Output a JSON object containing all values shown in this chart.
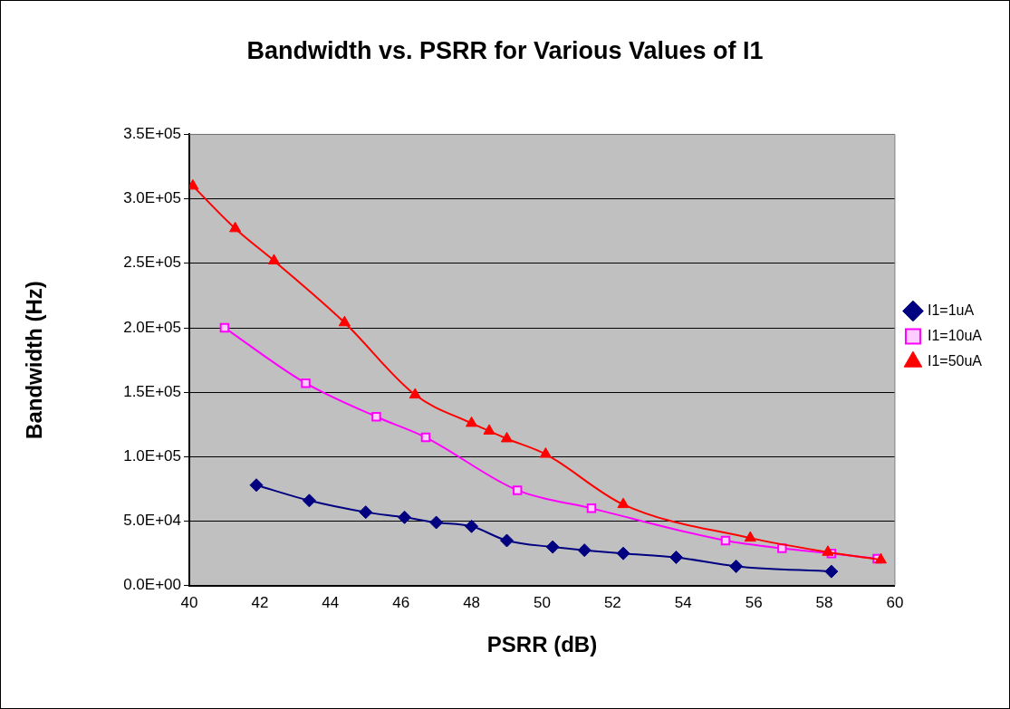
{
  "chart_data": {
    "type": "line",
    "title": "Bandwidth vs. PSRR for Various Values of I1",
    "xlabel": "PSRR (dB)",
    "ylabel": "Bandwidth (Hz)",
    "xlim": [
      40,
      60
    ],
    "xticks": [
      40,
      42,
      44,
      46,
      48,
      50,
      52,
      54,
      56,
      58,
      60
    ],
    "ylim": [
      0,
      350000
    ],
    "yticks": [
      {
        "value": 0,
        "label": "0.0E+00"
      },
      {
        "value": 50000,
        "label": "5.0E+04"
      },
      {
        "value": 100000,
        "label": "1.0E+05"
      },
      {
        "value": 150000,
        "label": "1.5E+05"
      },
      {
        "value": 200000,
        "label": "2.0E+05"
      },
      {
        "value": 250000,
        "label": "2.5E+05"
      },
      {
        "value": 300000,
        "label": "3.0E+05"
      },
      {
        "value": 350000,
        "label": "3.5E+05"
      }
    ],
    "grid": "y",
    "legend": "right",
    "series": [
      {
        "name": "I1=1uA",
        "color": "#000080",
        "marker": "diamond",
        "x": [
          41.9,
          43.4,
          45,
          46.1,
          47,
          48,
          49,
          50.3,
          51.2,
          52.3,
          53.8,
          55.5,
          58.2
        ],
        "values": [
          78000,
          66000,
          57000,
          53000,
          49000,
          46000,
          35000,
          30000,
          27500,
          25000,
          22000,
          15000,
          11000
        ]
      },
      {
        "name": "I1=10uA",
        "color": "#ff00ff",
        "marker": "square",
        "x": [
          41,
          43.3,
          45.3,
          46.7,
          49.3,
          51.4,
          55.2,
          56.8,
          58.2,
          59.5
        ],
        "values": [
          200000,
          157000,
          131000,
          115000,
          74000,
          60000,
          35000,
          29000,
          25000,
          21000
        ]
      },
      {
        "name": "I1=50uA",
        "color": "#ff0000",
        "marker": "triangle",
        "x": [
          40.1,
          41.3,
          42.4,
          44.4,
          46.4,
          48,
          48.5,
          49,
          50.1,
          52.3,
          55.9,
          58.1,
          59.6
        ],
        "values": [
          310000,
          277000,
          252000,
          204000,
          148000,
          126000,
          120000,
          114000,
          102000,
          63000,
          37000,
          26000,
          20000
        ]
      }
    ]
  }
}
